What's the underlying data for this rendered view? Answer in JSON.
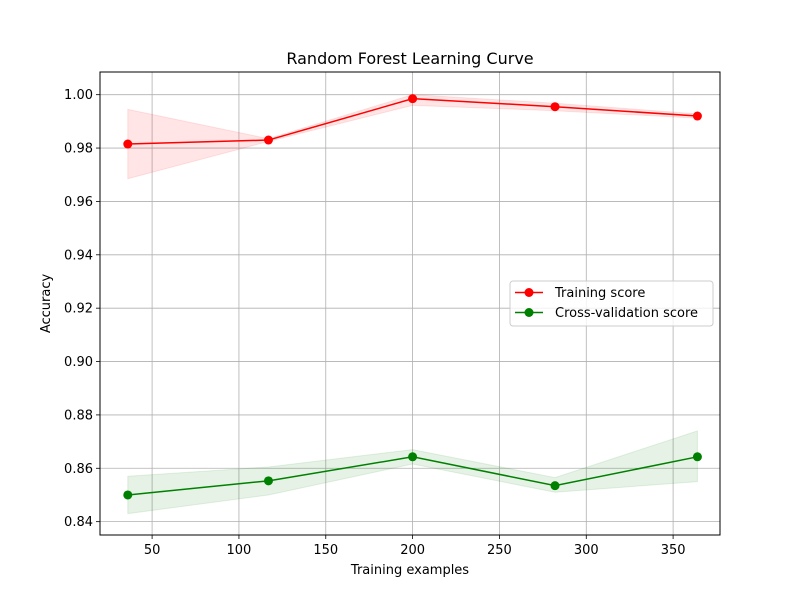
{
  "chart_data": {
    "type": "line",
    "title": "Random Forest Learning Curve",
    "xlabel": "Training examples",
    "ylabel": "Accuracy",
    "xlim": [
      20,
      377
    ],
    "ylim": [
      0.835,
      1.0085
    ],
    "xticks": [
      50,
      100,
      150,
      200,
      250,
      300,
      350
    ],
    "yticks": [
      0.84,
      0.86,
      0.88,
      0.9,
      0.92,
      0.94,
      0.96,
      0.98,
      1.0
    ],
    "ytick_labels": [
      "0.84",
      "0.86",
      "0.88",
      "0.90",
      "0.92",
      "0.94",
      "0.96",
      "0.98",
      "1.00"
    ],
    "grid": true,
    "legend_position": "center-right",
    "x": [
      36,
      117,
      200,
      282,
      364
    ],
    "series": [
      {
        "name": "Training score",
        "color": "#ff0000",
        "band_color": "#ff0000",
        "values": [
          0.9815,
          0.983,
          0.9985,
          0.9955,
          0.992
        ],
        "upper": [
          0.9945,
          0.9835,
          1.0,
          0.9968,
          0.9928
        ],
        "lower": [
          0.9685,
          0.9825,
          0.996,
          0.994,
          0.9912
        ]
      },
      {
        "name": "Cross-validation score",
        "color": "#008000",
        "band_color": "#008000",
        "values": [
          0.85,
          0.8553,
          0.8643,
          0.8535,
          0.8643
        ],
        "upper": [
          0.857,
          0.8605,
          0.867,
          0.8565,
          0.874
        ],
        "lower": [
          0.843,
          0.85,
          0.8616,
          0.851,
          0.855
        ]
      }
    ]
  }
}
